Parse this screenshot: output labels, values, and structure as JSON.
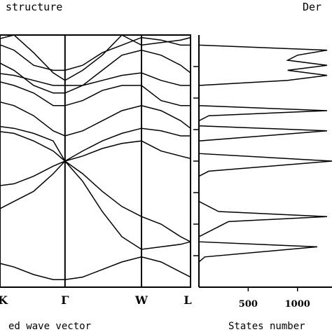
{
  "texts": {
    "left_title": "structure",
    "right_title": "Der",
    "left_xlabel": "ed wave vector",
    "right_xlabel": "States number"
  },
  "chart_data": [
    {
      "type": "line",
      "panel": "band-structure",
      "title": "structure",
      "xlabel": "ed wave vector",
      "ylabel": "",
      "ylim": [
        0,
        1
      ],
      "grid": false,
      "k_points": [
        {
          "label": "K",
          "x": 0.0
        },
        {
          "label": "Γ",
          "x": 0.36
        },
        {
          "label": "W",
          "x": 0.75
        },
        {
          "label": "L",
          "x": 1.0
        }
      ],
      "bands": [
        {
          "x": [
            0,
            0.1,
            0.2,
            0.3,
            0.36,
            0.45,
            0.55,
            0.65,
            0.75,
            0.85,
            0.95,
            1.0
          ],
          "y": [
            0.1,
            0.08,
            0.05,
            0.03,
            0.03,
            0.04,
            0.07,
            0.1,
            0.12,
            0.1,
            0.06,
            0.04
          ]
        },
        {
          "x": [
            0,
            0.1,
            0.2,
            0.3,
            0.36,
            0.45,
            0.55,
            0.65,
            0.75,
            0.85,
            0.95,
            1.0
          ],
          "y": [
            0.3,
            0.34,
            0.38,
            0.45,
            0.5,
            0.42,
            0.3,
            0.2,
            0.15,
            0.16,
            0.17,
            0.18
          ]
        },
        {
          "x": [
            0,
            0.1,
            0.2,
            0.3,
            0.36,
            0.45,
            0.55,
            0.65,
            0.75,
            0.85,
            0.95,
            1.0
          ],
          "y": [
            0.4,
            0.41,
            0.44,
            0.48,
            0.5,
            0.45,
            0.38,
            0.32,
            0.28,
            0.25,
            0.2,
            0.18
          ]
        },
        {
          "x": [
            0,
            0.1,
            0.2,
            0.3,
            0.36,
            0.45,
            0.55,
            0.65,
            0.75,
            0.85,
            0.95,
            1.0
          ],
          "y": [
            0.62,
            0.61,
            0.58,
            0.54,
            0.5,
            0.52,
            0.55,
            0.57,
            0.58,
            0.54,
            0.52,
            0.51
          ]
        },
        {
          "x": [
            0,
            0.1,
            0.2,
            0.3,
            0.36,
            0.45,
            0.55,
            0.65,
            0.75,
            0.85,
            0.95,
            1.0
          ],
          "y": [
            0.64,
            0.63,
            0.61,
            0.58,
            0.5,
            0.54,
            0.58,
            0.61,
            0.63,
            0.62,
            0.6,
            0.6
          ]
        },
        {
          "x": [
            0,
            0.1,
            0.2,
            0.3,
            0.36,
            0.45,
            0.55,
            0.65,
            0.75,
            0.85,
            0.95,
            1.0
          ],
          "y": [
            0.74,
            0.72,
            0.68,
            0.62,
            0.6,
            0.62,
            0.66,
            0.7,
            0.72,
            0.7,
            0.66,
            0.63
          ]
        },
        {
          "x": [
            0,
            0.1,
            0.2,
            0.3,
            0.36,
            0.45,
            0.55,
            0.65,
            0.75,
            0.85,
            0.95,
            1.0
          ],
          "y": [
            0.82,
            0.8,
            0.77,
            0.72,
            0.72,
            0.74,
            0.78,
            0.8,
            0.8,
            0.74,
            0.72,
            0.72
          ]
        },
        {
          "x": [
            0,
            0.1,
            0.2,
            0.3,
            0.36,
            0.45,
            0.55,
            0.65,
            0.75,
            0.85,
            0.95,
            1.0
          ],
          "y": [
            0.85,
            0.84,
            0.82,
            0.8,
            0.8,
            0.8,
            0.82,
            0.84,
            0.85,
            0.82,
            0.8,
            0.8
          ]
        },
        {
          "x": [
            0,
            0.1,
            0.2,
            0.3,
            0.36,
            0.45,
            0.55,
            0.65,
            0.75,
            0.85,
            0.95,
            1.0
          ],
          "y": [
            0.9,
            0.86,
            0.8,
            0.77,
            0.77,
            0.8,
            0.86,
            0.92,
            0.94,
            0.92,
            0.88,
            0.85
          ]
        },
        {
          "x": [
            0,
            0.1,
            0.2,
            0.3,
            0.36,
            0.45,
            0.55,
            0.65,
            0.75,
            0.85,
            0.95,
            1.0
          ],
          "y": [
            0.98,
            1.0,
            0.93,
            0.85,
            0.82,
            0.86,
            0.92,
            1.0,
            0.96,
            0.97,
            0.98,
            0.99
          ]
        },
        {
          "x": [
            0,
            0.1,
            0.2,
            0.3,
            0.36,
            0.45,
            0.55,
            0.65,
            0.75,
            0.85,
            0.95,
            1.0
          ],
          "y": [
            0.97,
            0.94,
            0.88,
            0.86,
            0.86,
            0.88,
            0.93,
            0.96,
            0.99,
            0.98,
            0.96,
            0.96
          ]
        }
      ]
    },
    {
      "type": "line",
      "panel": "density-of-states",
      "title": "Der",
      "xlabel": "States number",
      "ylabel": "",
      "xlim": [
        0,
        1350
      ],
      "ylim": [
        0,
        1
      ],
      "grid": false,
      "xticks": [
        500,
        1000
      ],
      "x": [
        0,
        0,
        60,
        1200,
        0,
        0,
        300,
        1300,
        200,
        0,
        0,
        100,
        1350,
        0,
        0,
        1300,
        0,
        0,
        100,
        1300,
        0,
        0,
        900,
        1300,
        900,
        1300,
        900,
        1000,
        1300,
        0
      ],
      "y": [
        0.0,
        0.1,
        0.12,
        0.16,
        0.18,
        0.2,
        0.26,
        0.28,
        0.3,
        0.34,
        0.44,
        0.46,
        0.5,
        0.53,
        0.58,
        0.62,
        0.64,
        0.66,
        0.68,
        0.7,
        0.72,
        0.8,
        0.82,
        0.84,
        0.86,
        0.88,
        0.9,
        0.92,
        0.94,
        0.96
      ]
    }
  ]
}
